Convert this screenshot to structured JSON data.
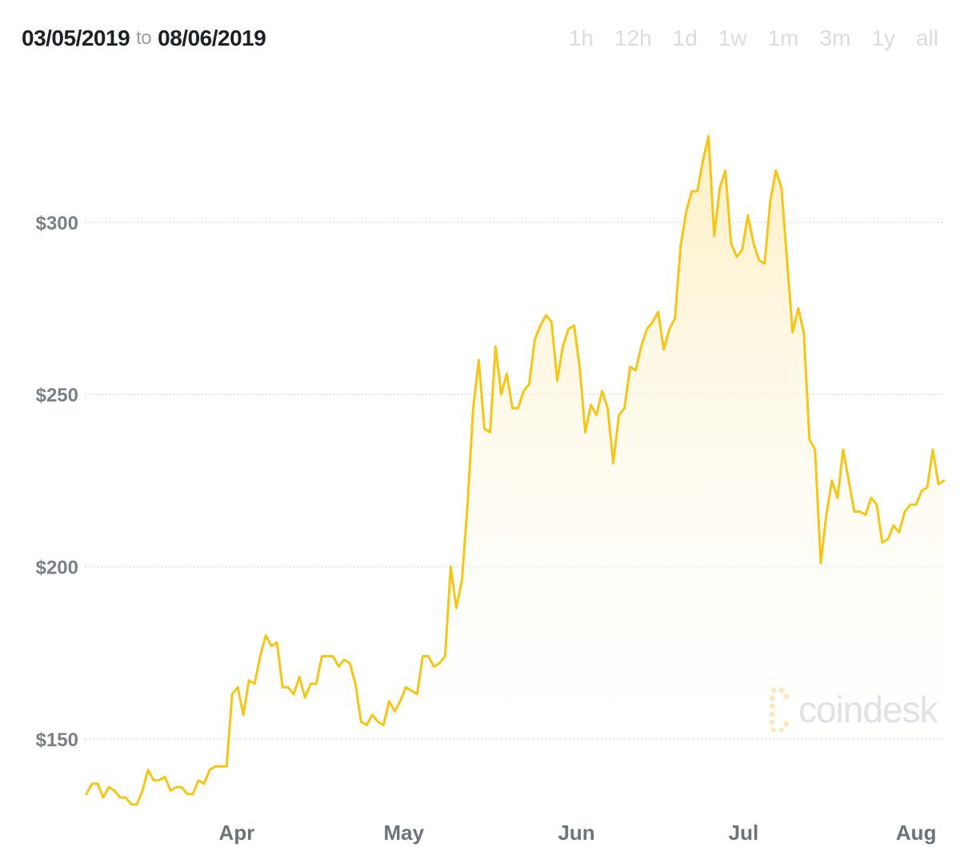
{
  "header": {
    "start_date": "03/05/2019",
    "to_label": "to",
    "end_date": "08/06/2019"
  },
  "range_tabs": [
    "1h",
    "12h",
    "1d",
    "1w",
    "1m",
    "3m",
    "1y",
    "all"
  ],
  "watermark": {
    "text": "coindesk",
    "icon": "coindesk-logo-icon"
  },
  "colors": {
    "line": "#f5c518",
    "area_top": "#fdf0c4",
    "grid": "#d8dadc"
  },
  "chart_data": {
    "type": "area",
    "title": "",
    "xlabel": "",
    "ylabel": "",
    "ylim": [
      130,
      332
    ],
    "y_ticks": [
      150,
      200,
      250,
      300
    ],
    "y_tick_labels": [
      "$150",
      "$200",
      "$250",
      "$300"
    ],
    "x_ticks": [
      {
        "label": "Apr",
        "date": "2019-04-01"
      },
      {
        "label": "May",
        "date": "2019-05-01"
      },
      {
        "label": "Jun",
        "date": "2019-06-01"
      },
      {
        "label": "Jul",
        "date": "2019-07-01"
      },
      {
        "label": "Aug",
        "date": "2019-08-01"
      }
    ],
    "grid": true,
    "legend": "none",
    "series": [
      {
        "x_start": "2019-03-05",
        "x_end": "2019-08-06",
        "values": [
          134,
          137,
          137,
          133,
          136,
          135,
          133,
          133,
          131,
          131,
          135,
          141,
          138,
          138,
          139,
          135,
          136,
          136,
          134,
          134,
          138,
          137,
          141,
          142,
          142,
          142,
          163,
          165,
          157,
          167,
          166,
          174,
          180,
          177,
          178,
          165,
          165,
          163,
          168,
          162,
          166,
          166,
          174,
          174,
          174,
          171,
          173,
          172,
          166,
          155,
          154,
          157,
          155,
          154,
          161,
          158,
          161,
          165,
          164,
          163,
          174,
          174,
          171,
          172,
          174,
          200,
          188,
          196,
          218,
          246,
          260,
          240,
          239,
          264,
          250,
          256,
          246,
          246,
          251,
          253,
          266,
          270,
          273,
          271,
          254,
          264,
          269,
          270,
          258,
          239,
          247,
          244,
          251,
          246,
          230,
          244,
          246,
          258,
          257,
          264,
          269,
          271,
          274,
          263,
          269,
          272,
          293,
          303,
          309,
          309,
          318,
          325,
          296,
          310,
          315,
          294,
          290,
          292,
          302,
          294,
          289,
          288,
          306,
          315,
          310,
          289,
          268,
          275,
          268,
          237,
          234,
          201,
          215,
          225,
          220,
          234,
          225,
          216,
          216,
          215,
          220,
          218,
          207,
          208,
          212,
          210,
          216,
          218,
          218,
          222,
          223,
          234,
          224,
          225
        ]
      }
    ]
  }
}
